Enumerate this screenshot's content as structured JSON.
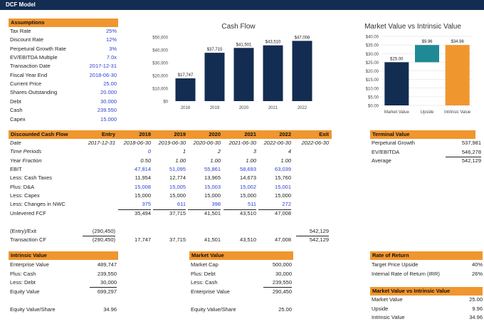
{
  "app": {
    "title": "DCF Model"
  },
  "colors": {
    "navy": "#132c52",
    "orange": "#f0962e",
    "teal": "#1f8a96",
    "blue_text": "#2b3fd1"
  },
  "assumptions": {
    "header": "Assumptions",
    "rows": [
      {
        "label": "Tax Rate",
        "value": "25%"
      },
      {
        "label": "Discount Rate",
        "value": "12%"
      },
      {
        "label": "Perpetural Growth Rate",
        "value": "3%"
      },
      {
        "label": "EV/EBITDA Multiple",
        "value": "7.0x"
      },
      {
        "label": "Transaction Date",
        "value": "2017-12-31"
      },
      {
        "label": "Fiscal Year End",
        "value": "2018-06-30"
      },
      {
        "label": "Current Price",
        "value": "25.00"
      },
      {
        "label": "Shares Outstanding",
        "value": "20.000"
      },
      {
        "label": "Debt",
        "value": "30.000"
      },
      {
        "label": "Cash",
        "value": "239.550"
      },
      {
        "label": "Capex",
        "value": "15.000"
      }
    ]
  },
  "chart_data": [
    {
      "type": "bar",
      "title": "Cash Flow",
      "categories": [
        "2018",
        "2019",
        "2020",
        "2021",
        "2022"
      ],
      "values": [
        17747,
        37715,
        41501,
        43510,
        47008
      ],
      "data_labels": [
        "$17,747",
        "$37,715",
        "$41,501",
        "$43,510",
        "$47,008"
      ],
      "ylim": [
        0,
        50000
      ],
      "yticks": [
        "$0",
        "$10,000",
        "$20,000",
        "$30,000",
        "$40,000",
        "$50,000"
      ],
      "ytick_values": [
        0,
        10000,
        20000,
        30000,
        40000,
        50000
      ],
      "color": "#132c52",
      "grid": false
    },
    {
      "type": "bar",
      "title": "Market Value vs Intrinsic Value",
      "categories": [
        "Market Value",
        "Upside",
        "Intrinsic Value"
      ],
      "values": [
        25.0,
        9.96,
        34.96
      ],
      "bases": [
        0,
        25.0,
        0
      ],
      "data_labels": [
        "$25.00",
        "$9.96",
        "$34.96"
      ],
      "colors": [
        "#132c52",
        "#1f8a96",
        "#f0962e"
      ],
      "ylim": [
        0,
        40
      ],
      "yticks": [
        "$0.00",
        "$5.00",
        "$10.00",
        "$15.00",
        "$20.00",
        "$25.00",
        "$30.00",
        "$35.00",
        "$40.00"
      ],
      "ytick_values": [
        0,
        5,
        10,
        15,
        20,
        25,
        30,
        35,
        40
      ],
      "grid": true
    }
  ],
  "dcf": {
    "header": [
      "Discounted Cash Flow",
      "Entry",
      "2018",
      "2019",
      "2020",
      "2021",
      "2022",
      "Exit"
    ],
    "rows": [
      {
        "cells": [
          "Date",
          "2017-12-31",
          "2018-06-30",
          "2019-06-30",
          "2020-06-30",
          "2021-06-30",
          "2022-06-30",
          "2022-06-30"
        ],
        "style": "it"
      },
      {
        "cells": [
          "Time Periods",
          "",
          "0",
          "1",
          "2",
          "3",
          "4",
          ""
        ],
        "style": "it",
        "blue": [
          2
        ]
      },
      {
        "cells": [
          "Year Fraction",
          "",
          "0.50",
          "1.00",
          "1.00",
          "1.00",
          "1.00",
          ""
        ],
        "style": "it"
      },
      {
        "cells": [
          "EBIT",
          "",
          "47,814",
          "51,095",
          "55,861",
          "58,693",
          "63,039",
          ""
        ],
        "blue": [
          2,
          3,
          4,
          5,
          6
        ]
      },
      {
        "cells": [
          "Less: Cash Taxes",
          "",
          "11,954",
          "12,774",
          "13,965",
          "14,673",
          "15,760",
          ""
        ]
      },
      {
        "cells": [
          "Plus: D&A",
          "",
          "15,008",
          "15,005",
          "15,003",
          "15,002",
          "15,001",
          ""
        ],
        "blue": [
          2,
          3,
          4,
          5,
          6
        ]
      },
      {
        "cells": [
          "Less: Capex",
          "",
          "15,000",
          "15,000",
          "15,000",
          "15,000",
          "15,000",
          ""
        ]
      },
      {
        "cells": [
          "Less: Changes in NWC",
          "",
          "375",
          "611",
          "398",
          "511",
          "272",
          ""
        ],
        "blue": [
          2,
          3,
          4,
          5,
          6
        ],
        "underline": true
      },
      {
        "cells": [
          "Unlevered FCF",
          "",
          "35,494",
          "37,715",
          "41,501",
          "43,510",
          "47,008",
          ""
        ]
      },
      {
        "cells": [
          "",
          "",
          "",
          "",
          "",
          "",
          "",
          ""
        ]
      },
      {
        "cells": [
          "(Entry)/Exit",
          "(290,450)",
          "",
          "",
          "",
          "",
          "",
          "542,129"
        ],
        "underline_cols": [
          1,
          7
        ]
      },
      {
        "cells": [
          "Transaction CF",
          "(290,450)",
          "17,747",
          "37,715",
          "41,501",
          "43,510",
          "47,008",
          "542,129"
        ]
      }
    ]
  },
  "terminal": {
    "header": "Terminal Value",
    "rows": [
      {
        "label": "Perpetural Growth",
        "value": "537,981"
      },
      {
        "label": "EV/EBITDA",
        "value": "546,278"
      },
      {
        "label": "Average",
        "value": "542,129"
      }
    ]
  },
  "intrinsic": {
    "header": "Intrinsic Value",
    "rows": [
      {
        "label": "Enterprise Value",
        "value": "489,747"
      },
      {
        "label": "Plus: Cash",
        "value": "239,550"
      },
      {
        "label": "Less: Debt",
        "value": "30,000"
      },
      {
        "label": "Equity Value",
        "value": "699,297"
      },
      {
        "label": "",
        "value": ""
      },
      {
        "label": "Equity Value/Share",
        "value": "34.96"
      }
    ]
  },
  "market": {
    "header": "Market Value",
    "rows": [
      {
        "label": "Market Cap",
        "value": "500,000"
      },
      {
        "label": "Plus: Debt",
        "value": "30,000"
      },
      {
        "label": "Less: Cash",
        "value": "239,550"
      },
      {
        "label": "Enterprise Value",
        "value": "290,450"
      },
      {
        "label": "",
        "value": ""
      },
      {
        "label": "Equity Value/Share",
        "value": "25.00"
      }
    ]
  },
  "ror": {
    "header": "Rate of Return",
    "rows": [
      {
        "label": "Target Price Upside",
        "value": "40%"
      },
      {
        "label": "Internal Rate of Return (IRR)",
        "value": "26%"
      }
    ]
  },
  "mvi": {
    "header": "Market Value vs Intrinsic Value",
    "rows": [
      {
        "label": "Market Value",
        "value": "25.00"
      },
      {
        "label": "Upside",
        "value": "9.96"
      },
      {
        "label": "Intrinsic Value",
        "value": "34.96"
      }
    ]
  }
}
